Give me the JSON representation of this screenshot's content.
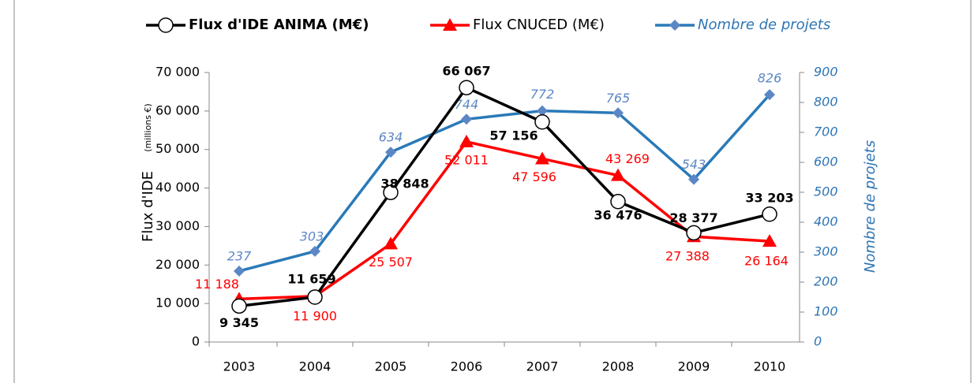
{
  "chart_data": {
    "type": "line",
    "categories": [
      "2003",
      "2004",
      "2005",
      "2006",
      "2007",
      "2008",
      "2009",
      "2010"
    ],
    "ylabel": "Flux d'IDE",
    "ylabel_note": "(millions €)",
    "y2label": "Nombre de projets",
    "ylim": [
      0,
      70000
    ],
    "yticks": [
      0,
      {
        "value": 10000,
        "label": "10 000"
      },
      {
        "value": 20000,
        "label": "20 000"
      },
      {
        "value": 30000,
        "label": "30 000"
      },
      {
        "value": 40000,
        "label": "40 000"
      },
      {
        "value": 50000,
        "label": "50 000"
      },
      {
        "value": 60000,
        "label": "60 000"
      },
      {
        "value": 70000,
        "label": "70 000"
      }
    ],
    "y2lim": [
      0,
      900
    ],
    "y2ticks": [
      0,
      100,
      200,
      300,
      400,
      500,
      600,
      700,
      800,
      900
    ],
    "series": [
      {
        "name": "Flux d'IDE ANIMA (M€)",
        "color": "#000000",
        "marker": "circle",
        "values": [
          9345,
          11659,
          38848,
          66067,
          57156,
          36476,
          28377,
          33203
        ],
        "value_labels": [
          "9 345",
          "11 659",
          "38 848",
          "66 067",
          "57 156",
          "36 476",
          "28 377",
          "33 203"
        ]
      },
      {
        "name": "Flux CNUCED (M€)",
        "color": "#ff0000",
        "marker": "triangle",
        "values": [
          11188,
          11900,
          25507,
          52011,
          47596,
          43269,
          27388,
          26164
        ],
        "value_labels": [
          "11 188",
          "11 900",
          "25 507",
          "52 011",
          "47 596",
          "43 269",
          "27 388",
          "26 164"
        ]
      },
      {
        "name": "Nombre de projets",
        "color": "#2a7ab8",
        "marker": "diamond",
        "axis": "y2",
        "values": [
          237,
          303,
          634,
          744,
          772,
          765,
          543,
          826
        ]
      }
    ]
  }
}
